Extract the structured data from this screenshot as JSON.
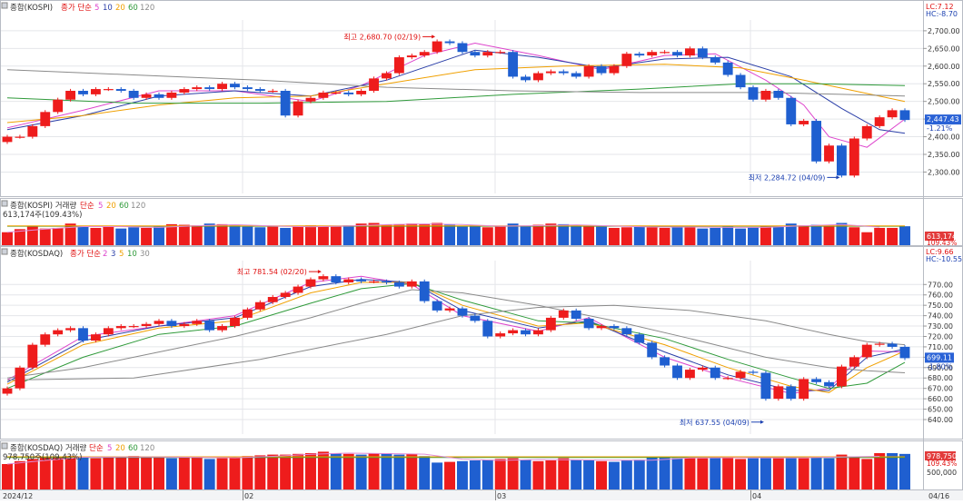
{
  "colors": {
    "up": "#ee1c1c",
    "down": "#1f5fd0",
    "ma_a": "#dd44cc",
    "ma_b": "#2b3fa8",
    "ma_c": "#f0a000",
    "ma_d": "#2f9a3a",
    "ma_e": "#8a8a8a",
    "vol_line": "#e08cd6",
    "grid": "#e4e6ea",
    "axis_text": "#333333",
    "badge_bg": "#2a62d6",
    "badge_bg_red": "#e23b3b",
    "annot_red": "#e01010",
    "annot_blue": "#1a3fb0",
    "panel_border": "#b8bcc4"
  },
  "panels": {
    "kospi_price": {
      "title": "종합(KOSPI)",
      "legend_prefix": "종가 단순",
      "ma_labels": [
        "5",
        "10",
        "20",
        "60",
        "120"
      ],
      "lc_text": "LC:7.12",
      "hc_text": "HC:-8.70",
      "last_value": "2,447.43",
      "last_change": "-1.21%",
      "high_annotation": "최고 2,680.70 (02/19)",
      "low_annotation": "최저 2,284.72 (04/09)"
    },
    "kospi_volume": {
      "title": "종합(KOSPI) 거래량",
      "legend_prefix": "단순",
      "ma_labels": [
        "5",
        "20",
        "60",
        "120"
      ],
      "value_text": "613,174주(109.43%)",
      "badge_value": "613,174",
      "badge_pct": "109.43%"
    },
    "kosdaq_price": {
      "title": "종합(KOSDAQ)",
      "legend_prefix": "종가 단순",
      "ma_labels": [
        "2",
        "3",
        "5",
        "10",
        "30"
      ],
      "lc_text": "LC:9.66",
      "hc_text": "HC:-10.55",
      "last_value": "699.11",
      "last_change": "-1.80%",
      "high_annotation": "최고 781.54 (02/20)",
      "low_annotation": "최저 637.55 (04/09)"
    },
    "kosdaq_volume": {
      "title": "종합(KOSDAQ) 거래량",
      "legend_prefix": "단순",
      "ma_labels": [
        "5",
        "20",
        "60",
        "120"
      ],
      "value_text": "978,750주(109.43%)",
      "badge_value": "978,750",
      "badge_pct": "109.43%",
      "axis_label": "500,000"
    }
  },
  "x_axis": {
    "labels": [
      "2024/12",
      "02",
      "03",
      "04",
      "04/16"
    ]
  },
  "chart_data": [
    {
      "type": "candlestick",
      "title": "종합(KOSPI)",
      "ylim": [
        2260,
        2710
      ],
      "y_ticks": [
        2300,
        2350,
        2400,
        2450,
        2500,
        2550,
        2600,
        2650,
        2700
      ],
      "y_tick_labels": [
        "2,300.00",
        "2,350.00",
        "2,400.00",
        "2,450.00",
        "2,500.00",
        "2,550.00",
        "2,600.00",
        "2,650.00",
        "2,700.00"
      ],
      "closes": [
        2400,
        2400,
        2430,
        2470,
        2505,
        2530,
        2520,
        2535,
        2535,
        2530,
        2510,
        2520,
        2510,
        2525,
        2535,
        2540,
        2535,
        2550,
        2540,
        2535,
        2530,
        2530,
        2460,
        2500,
        2510,
        2525,
        2525,
        2520,
        2530,
        2565,
        2580,
        2625,
        2630,
        2640,
        2670,
        2665,
        2640,
        2630,
        2640,
        2640,
        2570,
        2560,
        2580,
        2585,
        2580,
        2570,
        2600,
        2580,
        2600,
        2635,
        2630,
        2640,
        2640,
        2630,
        2650,
        2625,
        2610,
        2575,
        2540,
        2505,
        2530,
        2510,
        2435,
        2445,
        2330,
        2375,
        2290,
        2395,
        2430,
        2455,
        2475,
        2447.43
      ],
      "ma_lines": {
        "ma_a": [
          [
            0,
            2425
          ],
          [
            6,
            2475
          ],
          [
            12,
            2530
          ],
          [
            18,
            2530
          ],
          [
            24,
            2500
          ],
          [
            28,
            2545
          ],
          [
            33,
            2630
          ],
          [
            37,
            2665
          ],
          [
            42,
            2630
          ],
          [
            47,
            2590
          ],
          [
            52,
            2630
          ],
          [
            56,
            2635
          ],
          [
            60,
            2560
          ],
          [
            63,
            2490
          ],
          [
            65,
            2400
          ],
          [
            68,
            2370
          ],
          [
            71,
            2450
          ]
        ],
        "ma_b": [
          [
            0,
            2420
          ],
          [
            6,
            2460
          ],
          [
            12,
            2515
          ],
          [
            18,
            2530
          ],
          [
            24,
            2515
          ],
          [
            30,
            2560
          ],
          [
            37,
            2645
          ],
          [
            42,
            2625
          ],
          [
            47,
            2595
          ],
          [
            52,
            2620
          ],
          [
            57,
            2625
          ],
          [
            62,
            2570
          ],
          [
            66,
            2480
          ],
          [
            69,
            2420
          ],
          [
            71,
            2410
          ]
        ],
        "ma_c": [
          [
            0,
            2440
          ],
          [
            6,
            2460
          ],
          [
            12,
            2490
          ],
          [
            18,
            2510
          ],
          [
            24,
            2515
          ],
          [
            30,
            2550
          ],
          [
            37,
            2590
          ],
          [
            44,
            2600
          ],
          [
            52,
            2605
          ],
          [
            58,
            2595
          ],
          [
            63,
            2560
          ],
          [
            67,
            2530
          ],
          [
            71,
            2500
          ]
        ],
        "ma_d": [
          [
            0,
            2510
          ],
          [
            10,
            2495
          ],
          [
            20,
            2495
          ],
          [
            30,
            2500
          ],
          [
            40,
            2520
          ],
          [
            50,
            2535
          ],
          [
            58,
            2550
          ],
          [
            64,
            2550
          ],
          [
            71,
            2545
          ]
        ],
        "ma_e": [
          [
            0,
            2590
          ],
          [
            10,
            2575
          ],
          [
            20,
            2560
          ],
          [
            30,
            2540
          ],
          [
            40,
            2530
          ],
          [
            50,
            2525
          ],
          [
            60,
            2525
          ],
          [
            66,
            2520
          ],
          [
            71,
            2515
          ]
        ]
      },
      "high": {
        "value": 2680.7,
        "date": "02/19"
      },
      "low": {
        "value": 2284.72,
        "date": "04/09"
      }
    },
    {
      "type": "bar",
      "title": "종합(KOSPI) 거래량",
      "ylim": [
        0,
        1000000
      ],
      "volumes": [
        420000,
        520000,
        600000,
        540000,
        560000,
        700000,
        620000,
        560000,
        600000,
        540000,
        580000,
        560000,
        600000,
        680000,
        660000,
        640000,
        700000,
        680000,
        640000,
        600000,
        580000,
        600000,
        560000,
        600000,
        640000,
        620000,
        600000,
        640000,
        700000,
        720000,
        660000,
        680000,
        700000,
        680000,
        720000,
        660000,
        600000,
        640000,
        580000,
        600000,
        700000,
        620000,
        660000,
        700000,
        680000,
        640000,
        620000,
        600000,
        560000,
        580000,
        620000,
        580000,
        560000,
        600000,
        580000,
        540000,
        560000,
        600000,
        540000,
        580000,
        600000,
        620000,
        700000,
        640000,
        660000,
        640000,
        720000,
        580000,
        420000,
        560000,
        560000,
        613174
      ]
    },
    {
      "type": "candlestick",
      "title": "종합(KOSDAQ)",
      "ylim": [
        633,
        786
      ],
      "y_ticks": [
        640,
        650,
        660,
        670,
        680,
        690,
        700,
        710,
        720,
        730,
        740,
        750,
        760,
        770
      ],
      "y_tick_labels": [
        "640.00",
        "650.00",
        "660.00",
        "670.00",
        "680.00",
        "690.00",
        "700.00",
        "710.00",
        "720.00",
        "730.00",
        "740.00",
        "750.00",
        "760.00",
        "770.00"
      ],
      "closes": [
        670,
        690,
        712,
        722,
        726,
        728,
        716,
        722,
        728,
        730,
        730,
        732,
        735,
        730,
        732,
        735,
        726,
        730,
        738,
        746,
        753,
        758,
        762,
        768,
        775,
        778,
        772,
        775,
        773,
        773,
        772,
        768,
        773,
        754,
        745,
        747,
        740,
        735,
        720,
        723,
        726,
        722,
        726,
        738,
        745,
        737,
        728,
        730,
        728,
        722,
        714,
        700,
        692,
        680,
        688,
        690,
        680,
        680,
        686,
        685,
        660,
        672,
        660,
        679,
        676,
        672,
        691,
        700,
        712,
        713,
        710,
        699.11
      ],
      "ma_lines": {
        "ma_a": [
          [
            0,
            678
          ],
          [
            6,
            720
          ],
          [
            12,
            730
          ],
          [
            18,
            740
          ],
          [
            24,
            772
          ],
          [
            28,
            778
          ],
          [
            32,
            770
          ],
          [
            36,
            740
          ],
          [
            42,
            725
          ],
          [
            46,
            738
          ],
          [
            52,
            700
          ],
          [
            57,
            680
          ],
          [
            62,
            665
          ],
          [
            65,
            670
          ],
          [
            68,
            706
          ],
          [
            71,
            705
          ]
        ],
        "ma_b": [
          [
            0,
            676
          ],
          [
            6,
            716
          ],
          [
            12,
            730
          ],
          [
            18,
            738
          ],
          [
            24,
            768
          ],
          [
            28,
            775
          ],
          [
            32,
            772
          ],
          [
            36,
            745
          ],
          [
            42,
            728
          ],
          [
            46,
            735
          ],
          [
            52,
            705
          ],
          [
            57,
            683
          ],
          [
            62,
            668
          ],
          [
            65,
            668
          ],
          [
            68,
            700
          ],
          [
            71,
            708
          ]
        ],
        "ma_c": [
          [
            0,
            674
          ],
          [
            6,
            712
          ],
          [
            12,
            728
          ],
          [
            18,
            735
          ],
          [
            24,
            762
          ],
          [
            28,
            772
          ],
          [
            32,
            772
          ],
          [
            36,
            750
          ],
          [
            42,
            730
          ],
          [
            46,
            733
          ],
          [
            52,
            712
          ],
          [
            57,
            690
          ],
          [
            62,
            672
          ],
          [
            65,
            666
          ],
          [
            68,
            690
          ],
          [
            71,
            706
          ]
        ],
        "ma_d": [
          [
            0,
            670
          ],
          [
            6,
            700
          ],
          [
            12,
            722
          ],
          [
            18,
            730
          ],
          [
            24,
            752
          ],
          [
            28,
            766
          ],
          [
            32,
            771
          ],
          [
            36,
            755
          ],
          [
            42,
            735
          ],
          [
            46,
            733
          ],
          [
            52,
            718
          ],
          [
            57,
            698
          ],
          [
            62,
            680
          ],
          [
            65,
            670
          ],
          [
            68,
            675
          ],
          [
            71,
            695
          ]
        ],
        "ma_e": [
          [
            0,
            680
          ],
          [
            6,
            690
          ],
          [
            12,
            705
          ],
          [
            18,
            720
          ],
          [
            24,
            738
          ],
          [
            28,
            752
          ],
          [
            32,
            765
          ],
          [
            36,
            762
          ],
          [
            42,
            750
          ],
          [
            48,
            735
          ],
          [
            54,
            718
          ],
          [
            60,
            700
          ],
          [
            65,
            690
          ],
          [
            68,
            687
          ],
          [
            71,
            685
          ]
        ],
        "ma_f": [
          [
            0,
            678
          ],
          [
            10,
            680
          ],
          [
            20,
            698
          ],
          [
            30,
            722
          ],
          [
            36,
            740
          ],
          [
            42,
            748
          ],
          [
            48,
            750
          ],
          [
            54,
            745
          ],
          [
            60,
            735
          ],
          [
            65,
            722
          ],
          [
            68,
            715
          ],
          [
            71,
            712
          ]
        ]
      },
      "high": {
        "value": 781.54,
        "date": "02/20"
      },
      "low": {
        "value": 637.55,
        "date": "04/09"
      }
    },
    {
      "type": "bar",
      "title": "종합(KOSDAQ) 거래량",
      "ylim": [
        0,
        1100000
      ],
      "y_ticks": [
        500000
      ],
      "y_tick_labels": [
        "500,000"
      ],
      "volumes": [
        700000,
        780000,
        840000,
        880000,
        900000,
        920000,
        900000,
        860000,
        880000,
        900000,
        920000,
        880000,
        900000,
        860000,
        880000,
        900000,
        840000,
        860000,
        880000,
        920000,
        940000,
        960000,
        960000,
        980000,
        1000000,
        1040000,
        1000000,
        980000,
        960000,
        1000000,
        1000000,
        960000,
        980000,
        920000,
        740000,
        760000,
        780000,
        800000,
        820000,
        840000,
        860000,
        820000,
        780000,
        800000,
        860000,
        820000,
        800000,
        780000,
        760000,
        800000,
        820000,
        880000,
        900000,
        860000,
        880000,
        860000,
        900000,
        880000,
        840000,
        860000,
        880000,
        860000,
        900000,
        860000,
        880000,
        860000,
        960000,
        900000,
        840000,
        1000000,
        1000000,
        978750
      ]
    }
  ]
}
